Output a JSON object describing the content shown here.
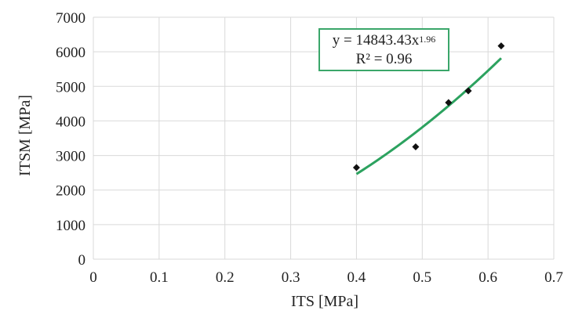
{
  "chart_data": {
    "type": "scatter",
    "xlabel": "ITS [MPa]",
    "ylabel": "ITSM [MPa]",
    "xlim": [
      0,
      0.7
    ],
    "ylim": [
      0,
      7000
    ],
    "x_ticks": [
      "0",
      "0.1",
      "0.2",
      "0.3",
      "0.4",
      "0.5",
      "0.6",
      "0.7"
    ],
    "y_ticks": [
      "0",
      "1000",
      "2000",
      "3000",
      "4000",
      "5000",
      "6000",
      "7000"
    ],
    "grid": true,
    "points": [
      {
        "x": 0.4,
        "y": 2650
      },
      {
        "x": 0.49,
        "y": 3250
      },
      {
        "x": 0.54,
        "y": 4530
      },
      {
        "x": 0.57,
        "y": 4870
      },
      {
        "x": 0.62,
        "y": 6170
      }
    ],
    "trendline": {
      "type": "power",
      "coefficient": 14843.43,
      "exponent": 1.96,
      "x_range": [
        0.4,
        0.62
      ],
      "color": "#2ca25f",
      "equation_prefix": "y = 14843.43x",
      "equation_exponent": "1.96",
      "r_squared_text": "R² = 0.96"
    },
    "marker_color": "#111111",
    "grid_color": "#d9d9d9"
  }
}
